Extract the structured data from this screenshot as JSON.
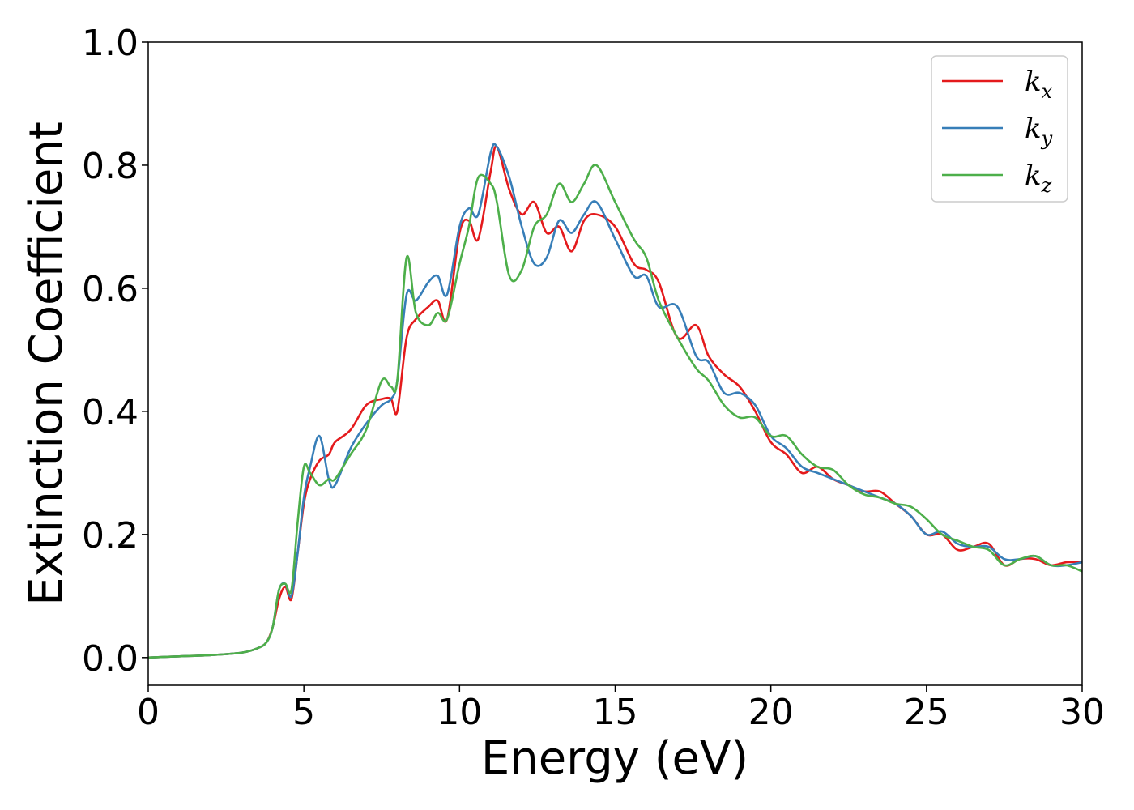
{
  "chart_data": {
    "type": "line",
    "xlabel": "Energy (eV)",
    "ylabel": "Extinction Coefficient",
    "xlim": [
      0,
      30
    ],
    "ylim": [
      -0.045,
      1.0
    ],
    "xticks": [
      0,
      5,
      10,
      15,
      20,
      25,
      30
    ],
    "xtick_labels": [
      "0",
      "5",
      "10",
      "15",
      "20",
      "25",
      "30"
    ],
    "yticks": [
      0.0,
      0.2,
      0.4,
      0.6,
      0.8,
      1.0
    ],
    "ytick_labels": [
      "0.0",
      "0.2",
      "0.4",
      "0.6",
      "0.8",
      "1.0"
    ],
    "grid": false,
    "legend_position": "top-right",
    "series": [
      {
        "name": "kx",
        "label_base": "k",
        "label_sub": "x",
        "color": "#e41a1c",
        "x": [
          0,
          1,
          2,
          3,
          3.5,
          3.8,
          4.0,
          4.2,
          4.4,
          4.6,
          4.8,
          5.0,
          5.2,
          5.5,
          5.8,
          6.0,
          6.5,
          7.0,
          7.5,
          7.8,
          8.0,
          8.3,
          8.6,
          9.0,
          9.3,
          9.6,
          10.0,
          10.3,
          10.6,
          11.0,
          11.2,
          11.6,
          12.0,
          12.4,
          12.8,
          13.2,
          13.6,
          14.0,
          14.4,
          15.0,
          15.6,
          16.0,
          16.4,
          17.0,
          17.6,
          18.0,
          18.5,
          19.0,
          19.5,
          20.0,
          20.5,
          21.0,
          21.5,
          22,
          22.5,
          23,
          23.5,
          24,
          24.5,
          25,
          25.5,
          26,
          26.5,
          27,
          27.5,
          28,
          28.5,
          29,
          29.5,
          30
        ],
        "y": [
          0.0,
          0.002,
          0.004,
          0.008,
          0.015,
          0.025,
          0.05,
          0.095,
          0.115,
          0.095,
          0.17,
          0.25,
          0.29,
          0.32,
          0.33,
          0.35,
          0.37,
          0.41,
          0.42,
          0.42,
          0.4,
          0.52,
          0.55,
          0.57,
          0.58,
          0.55,
          0.69,
          0.71,
          0.68,
          0.79,
          0.83,
          0.76,
          0.72,
          0.74,
          0.69,
          0.7,
          0.66,
          0.71,
          0.72,
          0.7,
          0.64,
          0.63,
          0.61,
          0.52,
          0.54,
          0.49,
          0.46,
          0.44,
          0.4,
          0.35,
          0.33,
          0.3,
          0.31,
          0.29,
          0.28,
          0.27,
          0.27,
          0.25,
          0.23,
          0.2,
          0.2,
          0.175,
          0.18,
          0.185,
          0.15,
          0.16,
          0.16,
          0.15,
          0.155,
          0.155
        ]
      },
      {
        "name": "ky",
        "label_base": "k",
        "label_sub": "y",
        "color": "#377eb8",
        "x": [
          0,
          1,
          2,
          3,
          3.5,
          3.8,
          4.0,
          4.2,
          4.4,
          4.6,
          4.8,
          5.0,
          5.2,
          5.5,
          5.8,
          6.0,
          6.5,
          7.0,
          7.5,
          7.8,
          8.0,
          8.3,
          8.6,
          9.0,
          9.3,
          9.6,
          10.0,
          10.3,
          10.6,
          11.0,
          11.2,
          11.6,
          12.0,
          12.4,
          12.8,
          13.2,
          13.6,
          14.0,
          14.4,
          15.0,
          15.6,
          16.0,
          16.4,
          17.0,
          17.6,
          18.0,
          18.5,
          19.0,
          19.5,
          20.0,
          20.5,
          21.0,
          21.5,
          22,
          22.5,
          23,
          23.5,
          24,
          24.5,
          25,
          25.5,
          26,
          26.5,
          27,
          27.5,
          28,
          28.5,
          29,
          29.5,
          30
        ],
        "y": [
          0.0,
          0.002,
          0.004,
          0.008,
          0.015,
          0.025,
          0.05,
          0.11,
          0.12,
          0.1,
          0.17,
          0.26,
          0.31,
          0.36,
          0.29,
          0.28,
          0.34,
          0.38,
          0.41,
          0.42,
          0.45,
          0.59,
          0.58,
          0.61,
          0.62,
          0.59,
          0.7,
          0.73,
          0.72,
          0.82,
          0.83,
          0.78,
          0.7,
          0.64,
          0.65,
          0.71,
          0.69,
          0.72,
          0.74,
          0.68,
          0.62,
          0.62,
          0.57,
          0.57,
          0.49,
          0.48,
          0.43,
          0.43,
          0.41,
          0.36,
          0.34,
          0.31,
          0.3,
          0.29,
          0.28,
          0.27,
          0.26,
          0.25,
          0.23,
          0.2,
          0.205,
          0.185,
          0.18,
          0.18,
          0.16,
          0.16,
          0.165,
          0.15,
          0.15,
          0.155
        ]
      },
      {
        "name": "kz",
        "label_base": "k",
        "label_sub": "z",
        "color": "#4daf4a",
        "x": [
          0,
          1,
          2,
          3,
          3.5,
          3.8,
          4.0,
          4.2,
          4.4,
          4.6,
          4.8,
          5.0,
          5.2,
          5.5,
          5.8,
          6.0,
          6.5,
          7.0,
          7.5,
          7.8,
          8.0,
          8.3,
          8.6,
          9.0,
          9.3,
          9.6,
          10.0,
          10.3,
          10.6,
          11.0,
          11.2,
          11.6,
          12.0,
          12.4,
          12.8,
          13.2,
          13.6,
          14.0,
          14.4,
          15.0,
          15.6,
          16.0,
          16.4,
          17.0,
          17.6,
          18.0,
          18.5,
          19.0,
          19.5,
          20.0,
          20.5,
          21.0,
          21.5,
          22,
          22.5,
          23,
          23.5,
          24,
          24.5,
          25,
          25.5,
          26,
          26.5,
          27,
          27.5,
          28,
          28.5,
          29,
          29.5,
          30
        ],
        "y": [
          0.0,
          0.002,
          0.004,
          0.008,
          0.015,
          0.025,
          0.05,
          0.11,
          0.12,
          0.11,
          0.22,
          0.31,
          0.3,
          0.28,
          0.29,
          0.29,
          0.33,
          0.37,
          0.45,
          0.44,
          0.45,
          0.65,
          0.56,
          0.54,
          0.56,
          0.55,
          0.64,
          0.7,
          0.78,
          0.77,
          0.74,
          0.62,
          0.63,
          0.7,
          0.72,
          0.77,
          0.74,
          0.77,
          0.8,
          0.74,
          0.68,
          0.65,
          0.58,
          0.52,
          0.47,
          0.45,
          0.41,
          0.39,
          0.39,
          0.36,
          0.36,
          0.33,
          0.31,
          0.305,
          0.28,
          0.265,
          0.26,
          0.25,
          0.245,
          0.225,
          0.2,
          0.19,
          0.18,
          0.175,
          0.15,
          0.16,
          0.165,
          0.15,
          0.15,
          0.14
        ]
      }
    ]
  }
}
